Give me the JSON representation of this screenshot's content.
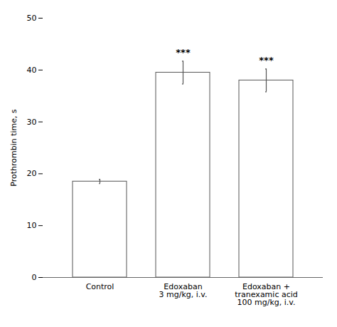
{
  "chart_data": {
    "type": "bar",
    "categories": [
      "Control",
      "Edoxaban\n3 mg/kg, i.v.",
      "Edoxaban +\ntranexamic acid\n100 mg/kg, i.v."
    ],
    "values": [
      18.5,
      39.5,
      38.0
    ],
    "errors": [
      0.4,
      2.2,
      2.2
    ],
    "significance": [
      null,
      "***",
      "***"
    ],
    "ylabel": "Prothrombin time, s",
    "ylim": [
      0,
      50
    ],
    "yticks": [
      0,
      10,
      20,
      30,
      40,
      50
    ],
    "color": "#ffffff"
  }
}
